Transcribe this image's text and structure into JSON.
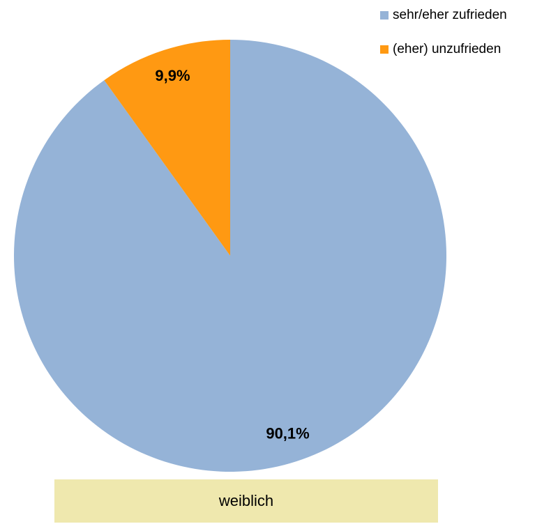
{
  "chart_data": {
    "type": "pie",
    "categories": [
      "sehr/eher zufrieden",
      "(eher) unzufrieden"
    ],
    "values": [
      90.1,
      9.9
    ],
    "value_labels": [
      "90,1%",
      "9,9%"
    ],
    "colors": [
      "#95b3d7",
      "#ff9912"
    ],
    "legend": "top-right",
    "caption": "weiblich"
  }
}
